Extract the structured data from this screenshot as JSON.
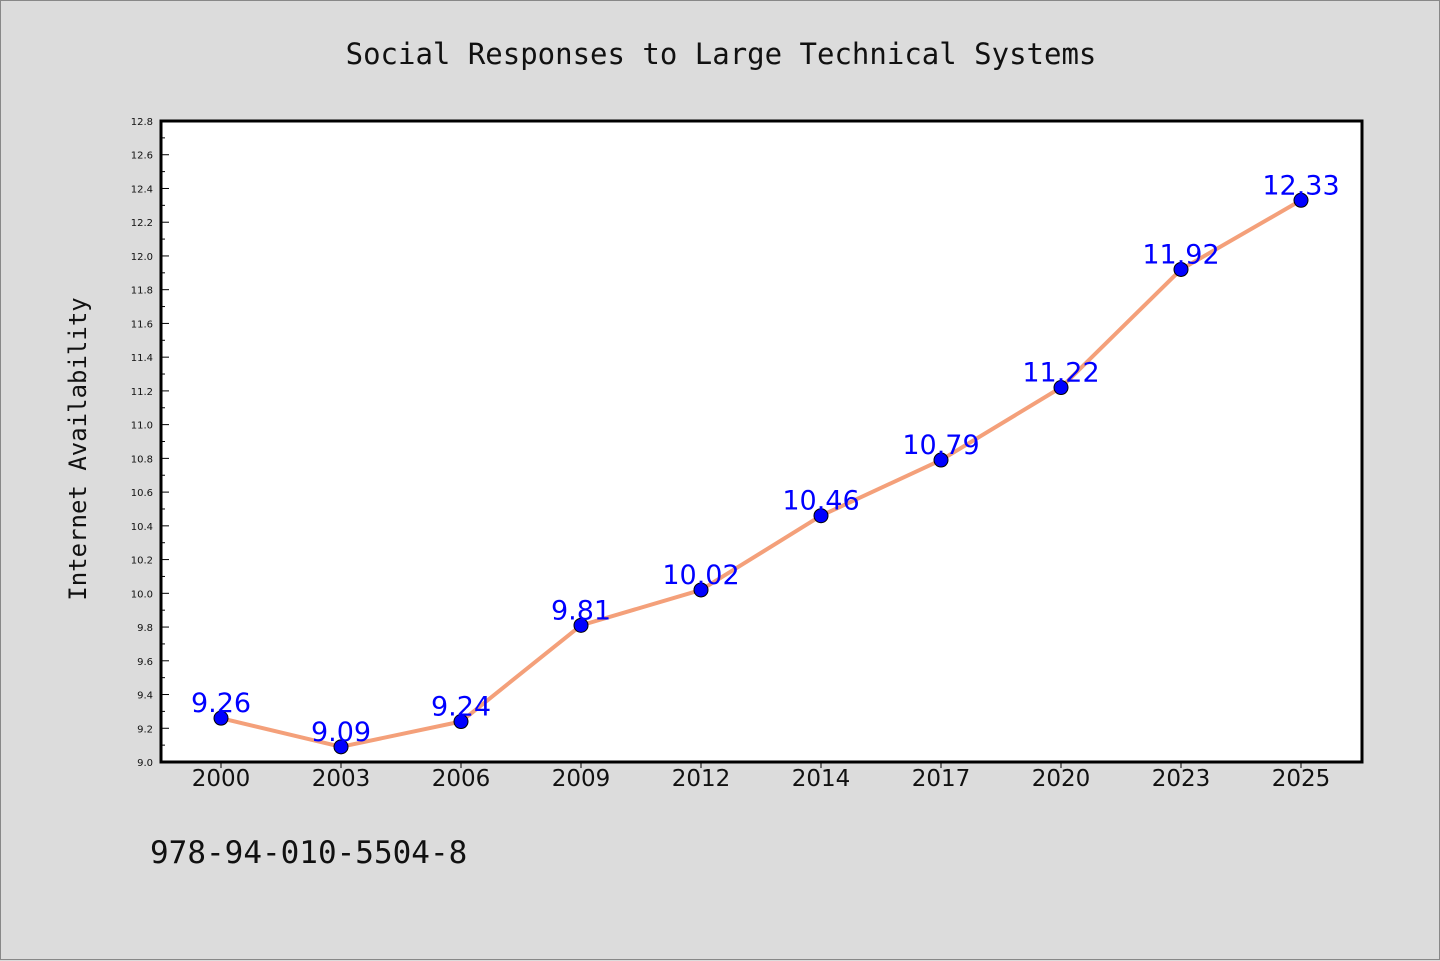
{
  "chart_data": {
    "type": "line",
    "title": "Social Responses to Large Technical Systems",
    "xlabel": "",
    "ylabel": "Internet Availability",
    "categories": [
      "2000",
      "2003",
      "2006",
      "2009",
      "2012",
      "2014",
      "2017",
      "2020",
      "2023",
      "2025"
    ],
    "series": [
      {
        "values": [
          9.26,
          9.09,
          9.24,
          9.81,
          10.02,
          10.46,
          10.79,
          11.22,
          11.92,
          12.33
        ],
        "line_color": "#f4a07a",
        "marker_color": "#0000ff"
      }
    ],
    "data_labels": [
      "9.26",
      "9.09",
      "9.24",
      "9.81",
      "10.02",
      "10.46",
      "10.79",
      "11.22",
      "11.92",
      "12.33"
    ],
    "ylim": [
      9.0,
      12.8
    ],
    "yticks": [
      "9.0",
      "9.2",
      "9.4",
      "9.6",
      "9.8",
      "10.0",
      "10.2",
      "10.4",
      "10.6",
      "10.8",
      "11.0",
      "11.2",
      "11.4",
      "11.6",
      "11.8",
      "12.0",
      "12.2",
      "12.4",
      "12.6",
      "12.8"
    ],
    "grid": false,
    "legend": "none"
  },
  "footer": {
    "code": "978-94-010-5504-8"
  }
}
